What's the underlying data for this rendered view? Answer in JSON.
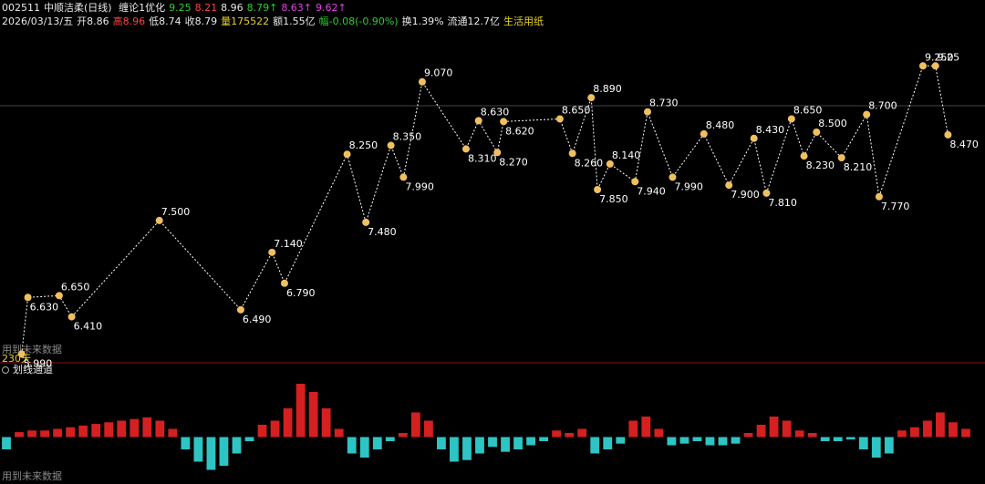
{
  "header": {
    "code": "002511",
    "name": "中顺洁柔(日线)",
    "indicator": "缠论1优化",
    "indicator_values": [
      {
        "text": "9.25",
        "color": "#2ecc2e"
      },
      {
        "text": "8.21",
        "color": "#ff4040"
      },
      {
        "text": "8.96",
        "color": "#e8e8e8"
      },
      {
        "text": "8.79↑",
        "color": "#2ecc2e"
      },
      {
        "text": "8.63↑",
        "color": "#e040e0"
      },
      {
        "text": "9.62↑",
        "color": "#e040e0"
      }
    ]
  },
  "quote": {
    "date": "2026/03/13/五",
    "items": [
      {
        "text": "开8.86",
        "color": "#e8e8e8"
      },
      {
        "text": "高8.96",
        "color": "#ff4040"
      },
      {
        "text": "低8.74",
        "color": "#e8e8e8"
      },
      {
        "text": "收8.79",
        "color": "#e8e8e8"
      },
      {
        "text": "量175522",
        "color": "#e8d020"
      },
      {
        "text": "额1.55亿",
        "color": "#e8e8e8"
      },
      {
        "text": "幅-0.08(-0.90%)",
        "color": "#2ecc2e"
      },
      {
        "text": "换1.39%",
        "color": "#e8e8e8"
      },
      {
        "text": "流通12.7亿",
        "color": "#e8e8e8"
      },
      {
        "text": "生活用纸",
        "color": "#e8d020"
      }
    ]
  },
  "notes": {
    "future_data_top": "用到未来数据",
    "days": "230天",
    "panel_title": "划线通道",
    "future_data_bottom": "用到未来数据"
  },
  "chart_data": [
    {
      "type": "line",
      "xlim": [
        0,
        153
      ],
      "ylim": [
        5.89,
        9.81
      ],
      "x": [
        2,
        3,
        8,
        10,
        24,
        37,
        42,
        44,
        54,
        57,
        61,
        63,
        66,
        73,
        75,
        78,
        79,
        88,
        90,
        93,
        94,
        96,
        100,
        102,
        106,
        111,
        115,
        119,
        121,
        125,
        127,
        129,
        133,
        137,
        139,
        146,
        148,
        150
      ],
      "series": [
        {
          "color": "#ffffff",
          "marker_color": "#f0c060",
          "values": [
            5.99,
            6.63,
            6.65,
            6.41,
            7.5,
            6.49,
            7.14,
            6.79,
            8.25,
            7.48,
            8.35,
            7.99,
            9.07,
            8.31,
            8.63,
            8.27,
            8.62,
            8.65,
            8.26,
            8.89,
            7.85,
            8.14,
            7.94,
            8.73,
            7.99,
            8.48,
            7.9,
            8.43,
            7.81,
            8.65,
            8.23,
            8.5,
            8.21,
            8.7,
            7.77,
            9.25,
            9.25,
            8.47
          ],
          "value_labels": [
            "5.990",
            "6.630",
            "6.650",
            "6.410",
            "7.500",
            "6.490",
            "7.140",
            "6.790",
            "8.250",
            "7.480",
            "8.350",
            "7.990",
            "9.070",
            "8.310",
            "8.630",
            "8.270",
            "8.620",
            "8.650",
            "8.260",
            "8.890",
            "7.850",
            "8.140",
            "7.940",
            "8.730",
            "7.990",
            "8.480",
            "7.900",
            "8.430",
            "7.810",
            "8.650",
            "8.230",
            "8.500",
            "8.210",
            "8.700",
            "7.770",
            "9.250",
            "9.25",
            "8.470"
          ]
        }
      ]
    },
    {
      "type": "bar",
      "ylim": [
        -45,
        75
      ],
      "pos_color": "#d42020",
      "neg_color": "#2ec4c4",
      "values": [
        -15,
        6,
        8,
        8,
        10,
        12,
        14,
        16,
        18,
        20,
        22,
        24,
        20,
        10,
        -15,
        -30,
        -40,
        -35,
        -20,
        -5,
        15,
        20,
        35,
        65,
        55,
        35,
        10,
        -20,
        -25,
        -15,
        -5,
        5,
        30,
        20,
        -15,
        -30,
        -28,
        -20,
        -12,
        -18,
        -15,
        -10,
        -5,
        8,
        5,
        10,
        -20,
        -15,
        -8,
        20,
        25,
        10,
        -10,
        -8,
        -5,
        -10,
        -10,
        -8,
        5,
        15,
        25,
        20,
        8,
        5,
        -5,
        -5,
        -3,
        -15,
        -25,
        -20,
        8,
        12,
        20,
        30,
        18,
        10
      ]
    }
  ]
}
